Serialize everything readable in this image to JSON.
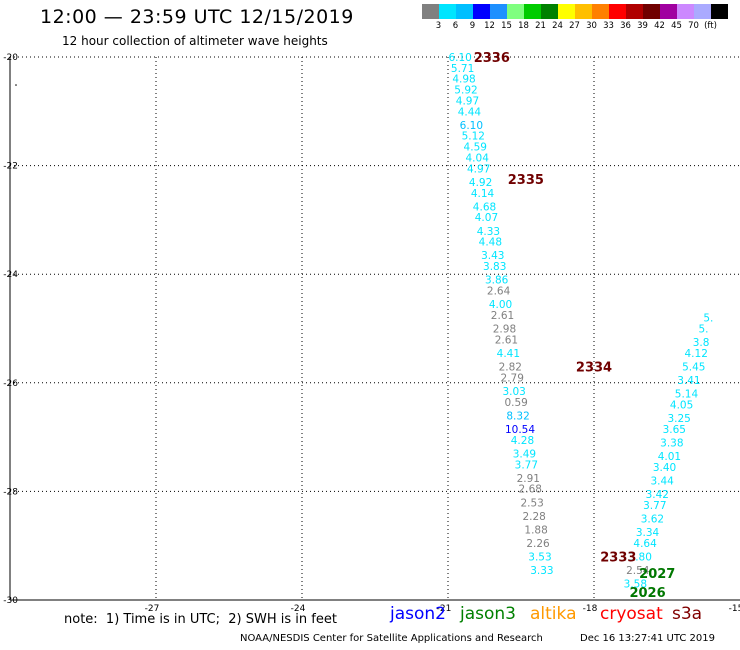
{
  "header": {
    "title": "12:00 — 23:59 UTC 12/15/2019",
    "subtitle": "12 hour collection of altimeter wave heights"
  },
  "colorbar": {
    "colors": [
      "#808080",
      "#00e5ff",
      "#00bfff",
      "#0000ff",
      "#1e90ff",
      "#7fff7f",
      "#00cc00",
      "#008000",
      "#ffff00",
      "#ffbf00",
      "#ff8000",
      "#ff0000",
      "#b00000",
      "#700000",
      "#a000a0",
      "#cc88ff",
      "#aaaaff",
      "#000000"
    ],
    "labels": [
      "3",
      "6",
      "9",
      "12",
      "15",
      "18",
      "21",
      "24",
      "27",
      "30",
      "33",
      "36",
      "39",
      "42",
      "45",
      "70",
      "(ft)"
    ]
  },
  "chart_data": {
    "type": "scatter",
    "xlim": [
      -30,
      -15
    ],
    "ylim": [
      -30,
      -20
    ],
    "x_ticks": [
      -27,
      -24,
      -21,
      -18,
      -15
    ],
    "x_tick_labels": [
      "-27",
      "-24",
      "-21",
      "-18",
      "-15"
    ],
    "y_ticks": [
      -20,
      -22,
      -24,
      -26,
      -28,
      -30
    ],
    "y_tick_labels": [
      "-20",
      "-22",
      "-24",
      "-26",
      "-28",
      "-30"
    ],
    "grid": true,
    "tracks": [
      {
        "name": "2336",
        "color": "#700000",
        "lon": -20.1,
        "lat": -20.0
      },
      {
        "name": "2335",
        "color": "#700000",
        "lon": -19.4,
        "lat": -22.25
      },
      {
        "name": "2334",
        "color": "#700000",
        "lon": -18.0,
        "lat": -25.7
      },
      {
        "name": "2333",
        "color": "#700000",
        "lon": -17.5,
        "lat": -29.2
      },
      {
        "name": "2027",
        "color": "#007700",
        "lon": -16.7,
        "lat": -29.5
      },
      {
        "name": "2026",
        "color": "#007700",
        "lon": -16.9,
        "lat": -29.85
      }
    ],
    "points": [
      {
        "v": "6.10",
        "c": "#00e5ff",
        "lon": -20.75,
        "lat": -20.0
      },
      {
        "v": "5.71",
        "c": "#00e5ff",
        "lon": -20.7,
        "lat": -20.2
      },
      {
        "v": "4.98",
        "c": "#00e5ff",
        "lon": -20.67,
        "lat": -20.4
      },
      {
        "v": "5.92",
        "c": "#00e5ff",
        "lon": -20.63,
        "lat": -20.6
      },
      {
        "v": "4.97",
        "c": "#00e5ff",
        "lon": -20.6,
        "lat": -20.8
      },
      {
        "v": "4.44",
        "c": "#00e5ff",
        "lon": -20.56,
        "lat": -21.0
      },
      {
        "v": "6.10",
        "c": "#00bfff",
        "lon": -20.52,
        "lat": -21.25
      },
      {
        "v": "5.12",
        "c": "#00e5ff",
        "lon": -20.48,
        "lat": -21.45
      },
      {
        "v": "4.59",
        "c": "#00e5ff",
        "lon": -20.44,
        "lat": -21.65
      },
      {
        "v": "4.04",
        "c": "#00e5ff",
        "lon": -20.4,
        "lat": -21.85
      },
      {
        "v": "4.97",
        "c": "#00e5ff",
        "lon": -20.37,
        "lat": -22.05
      },
      {
        "v": "4.92",
        "c": "#00e5ff",
        "lon": -20.33,
        "lat": -22.3
      },
      {
        "v": "4.14",
        "c": "#00e5ff",
        "lon": -20.29,
        "lat": -22.5
      },
      {
        "v": "4.68",
        "c": "#00e5ff",
        "lon": -20.25,
        "lat": -22.75
      },
      {
        "v": "4.07",
        "c": "#00e5ff",
        "lon": -20.21,
        "lat": -22.95
      },
      {
        "v": "4.33",
        "c": "#00e5ff",
        "lon": -20.17,
        "lat": -23.2
      },
      {
        "v": "4.48",
        "c": "#00e5ff",
        "lon": -20.13,
        "lat": -23.4
      },
      {
        "v": "3.43",
        "c": "#00e5ff",
        "lon": -20.08,
        "lat": -23.65
      },
      {
        "v": "3.83",
        "c": "#00e5ff",
        "lon": -20.04,
        "lat": -23.85
      },
      {
        "v": "3.86",
        "c": "#00e5ff",
        "lon": -20.0,
        "lat": -24.1
      },
      {
        "v": "2.64",
        "c": "#808080",
        "lon": -19.96,
        "lat": -24.3
      },
      {
        "v": "4.00",
        "c": "#00e5ff",
        "lon": -19.92,
        "lat": -24.55
      },
      {
        "v": "2.61",
        "c": "#808080",
        "lon": -19.88,
        "lat": -24.75
      },
      {
        "v": "2.98",
        "c": "#808080",
        "lon": -19.84,
        "lat": -25.0
      },
      {
        "v": "2.61",
        "c": "#808080",
        "lon": -19.8,
        "lat": -25.2
      },
      {
        "v": "4.41",
        "c": "#00e5ff",
        "lon": -19.76,
        "lat": -25.45
      },
      {
        "v": "2.82",
        "c": "#808080",
        "lon": -19.72,
        "lat": -25.7
      },
      {
        "v": "2.79",
        "c": "#808080",
        "lon": -19.68,
        "lat": -25.9
      },
      {
        "v": "3.03",
        "c": "#00e5ff",
        "lon": -19.64,
        "lat": -26.15
      },
      {
        "v": "0.59",
        "c": "#808080",
        "lon": -19.6,
        "lat": -26.35
      },
      {
        "v": "8.32",
        "c": "#00bfff",
        "lon": -19.56,
        "lat": -26.6
      },
      {
        "v": "10.54",
        "c": "#0000ff",
        "lon": -19.52,
        "lat": -26.85
      },
      {
        "v": "4.28",
        "c": "#00e5ff",
        "lon": -19.47,
        "lat": -27.05
      },
      {
        "v": "3.49",
        "c": "#00e5ff",
        "lon": -19.43,
        "lat": -27.3
      },
      {
        "v": "3.77",
        "c": "#00e5ff",
        "lon": -19.39,
        "lat": -27.5
      },
      {
        "v": "2.91",
        "c": "#808080",
        "lon": -19.35,
        "lat": -27.75
      },
      {
        "v": "2.68",
        "c": "#808080",
        "lon": -19.31,
        "lat": -27.95
      },
      {
        "v": "2.53",
        "c": "#808080",
        "lon": -19.27,
        "lat": -28.2
      },
      {
        "v": "2.28",
        "c": "#808080",
        "lon": -19.23,
        "lat": -28.45
      },
      {
        "v": "1.88",
        "c": "#808080",
        "lon": -19.19,
        "lat": -28.7
      },
      {
        "v": "2.26",
        "c": "#808080",
        "lon": -19.15,
        "lat": -28.95
      },
      {
        "v": "3.53",
        "c": "#00e5ff",
        "lon": -19.11,
        "lat": -29.2
      },
      {
        "v": "3.33",
        "c": "#00e5ff",
        "lon": -19.07,
        "lat": -29.45
      },
      {
        "v": "3.58",
        "c": "#00e5ff",
        "lon": -17.15,
        "lat": -29.7
      },
      {
        "v": "2.54",
        "c": "#808080",
        "lon": -17.1,
        "lat": -29.45
      },
      {
        "v": "3.80",
        "c": "#00e5ff",
        "lon": -17.05,
        "lat": -29.2
      },
      {
        "v": "4.64",
        "c": "#00e5ff",
        "lon": -16.95,
        "lat": -28.95
      },
      {
        "v": "3.34",
        "c": "#00e5ff",
        "lon": -16.9,
        "lat": -28.75
      },
      {
        "v": "3.62",
        "c": "#00e5ff",
        "lon": -16.8,
        "lat": -28.5
      },
      {
        "v": "3.77",
        "c": "#00e5ff",
        "lon": -16.75,
        "lat": -28.25
      },
      {
        "v": "3.42",
        "c": "#00e5ff",
        "lon": -16.7,
        "lat": -28.05
      },
      {
        "v": "3.44",
        "c": "#00e5ff",
        "lon": -16.6,
        "lat": -27.8
      },
      {
        "v": "3.40",
        "c": "#00e5ff",
        "lon": -16.55,
        "lat": -27.55
      },
      {
        "v": "4.01",
        "c": "#00e5ff",
        "lon": -16.45,
        "lat": -27.35
      },
      {
        "v": "3.38",
        "c": "#00e5ff",
        "lon": -16.4,
        "lat": -27.1
      },
      {
        "v": "3.65",
        "c": "#00e5ff",
        "lon": -16.35,
        "lat": -26.85
      },
      {
        "v": "3.25",
        "c": "#00e5ff",
        "lon": -16.25,
        "lat": -26.65
      },
      {
        "v": "4.05",
        "c": "#00e5ff",
        "lon": -16.2,
        "lat": -26.4
      },
      {
        "v": "5.14",
        "c": "#00e5ff",
        "lon": -16.1,
        "lat": -26.2
      },
      {
        "v": "3.41",
        "c": "#00e5ff",
        "lon": -16.05,
        "lat": -25.95
      },
      {
        "v": "5.45",
        "c": "#00e5ff",
        "lon": -15.95,
        "lat": -25.7
      },
      {
        "v": "4.12",
        "c": "#00e5ff",
        "lon": -15.9,
        "lat": -25.45
      },
      {
        "v": "3.8",
        "c": "#00e5ff",
        "lon": -15.8,
        "lat": -25.25
      },
      {
        "v": "5.",
        "c": "#00e5ff",
        "lon": -15.75,
        "lat": -25.0
      },
      {
        "v": "5.",
        "c": "#00e5ff",
        "lon": -15.65,
        "lat": -24.8
      }
    ]
  },
  "footer": {
    "note": "note:  1) Time is in UTC;  2) SWH is in feet",
    "satellites": [
      {
        "name": "jason2",
        "color": "#0000ff"
      },
      {
        "name": "jason3",
        "color": "#008000"
      },
      {
        "name": "altika",
        "color": "#ff9900"
      },
      {
        "name": "cryosat",
        "color": "#ff0000"
      },
      {
        "name": "s3a",
        "color": "#800000"
      }
    ],
    "credit": "NOAA/NESDIS Center for Satellite Applications and Research",
    "timestamp": "Dec 16 13:27:41 UTC 2019"
  }
}
